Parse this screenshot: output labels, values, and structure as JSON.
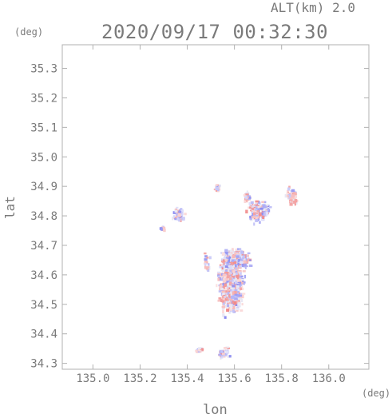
{
  "header": {
    "altitude": "ALT(km) 2.0",
    "datetime": "2020/09/17 00:32:30"
  },
  "chart_data": {
    "type": "heatmap",
    "title": "2020/09/17 00:32:30",
    "subtitle": "ALT(km) 2.0",
    "xlabel": "lon",
    "ylabel": "lat",
    "x_unit": "(deg)",
    "y_unit": "(deg)",
    "xlim": [
      134.87,
      136.17
    ],
    "ylim": [
      34.28,
      35.38
    ],
    "x_ticks": [
      "135.0",
      "135.2",
      "135.4",
      "135.6",
      "135.8",
      "136.0"
    ],
    "x_tick_values": [
      135.0,
      135.2,
      135.4,
      135.6,
      135.8,
      136.0
    ],
    "y_ticks": [
      "34.3",
      "34.4",
      "34.5",
      "34.6",
      "34.7",
      "34.8",
      "34.9",
      "35.0",
      "35.1",
      "35.2",
      "35.3"
    ],
    "y_tick_values": [
      34.3,
      34.4,
      34.5,
      34.6,
      34.7,
      34.8,
      34.9,
      35.0,
      35.1,
      35.2,
      35.3
    ],
    "grid": false,
    "colors": {
      "positive": "#f08a8a",
      "negative": "#8a8af0",
      "neutral": "#e8e8f4"
    },
    "clusters": [
      {
        "lon": 135.58,
        "lat": 34.57,
        "rlon": 0.065,
        "rlat": 0.12,
        "n": 900
      },
      {
        "lon": 135.6,
        "lat": 34.66,
        "rlon": 0.07,
        "rlat": 0.04,
        "n": 400
      },
      {
        "lon": 135.55,
        "lat": 34.34,
        "rlon": 0.03,
        "rlat": 0.02,
        "n": 50
      },
      {
        "lon": 135.36,
        "lat": 34.81,
        "rlon": 0.03,
        "rlat": 0.03,
        "n": 60
      },
      {
        "lon": 135.52,
        "lat": 34.9,
        "rlon": 0.015,
        "rlat": 0.015,
        "n": 25
      },
      {
        "lon": 135.7,
        "lat": 34.82,
        "rlon": 0.06,
        "rlat": 0.05,
        "n": 150
      },
      {
        "lon": 135.84,
        "lat": 34.87,
        "rlon": 0.03,
        "rlat": 0.04,
        "n": 80
      },
      {
        "lon": 135.65,
        "lat": 34.87,
        "rlon": 0.02,
        "rlat": 0.02,
        "n": 40
      },
      {
        "lon": 135.29,
        "lat": 34.76,
        "rlon": 0.01,
        "rlat": 0.01,
        "n": 10
      },
      {
        "lon": 135.45,
        "lat": 34.35,
        "rlon": 0.03,
        "rlat": 0.008,
        "n": 20
      },
      {
        "lon": 135.48,
        "lat": 34.65,
        "rlon": 0.02,
        "rlat": 0.04,
        "n": 20
      }
    ]
  }
}
